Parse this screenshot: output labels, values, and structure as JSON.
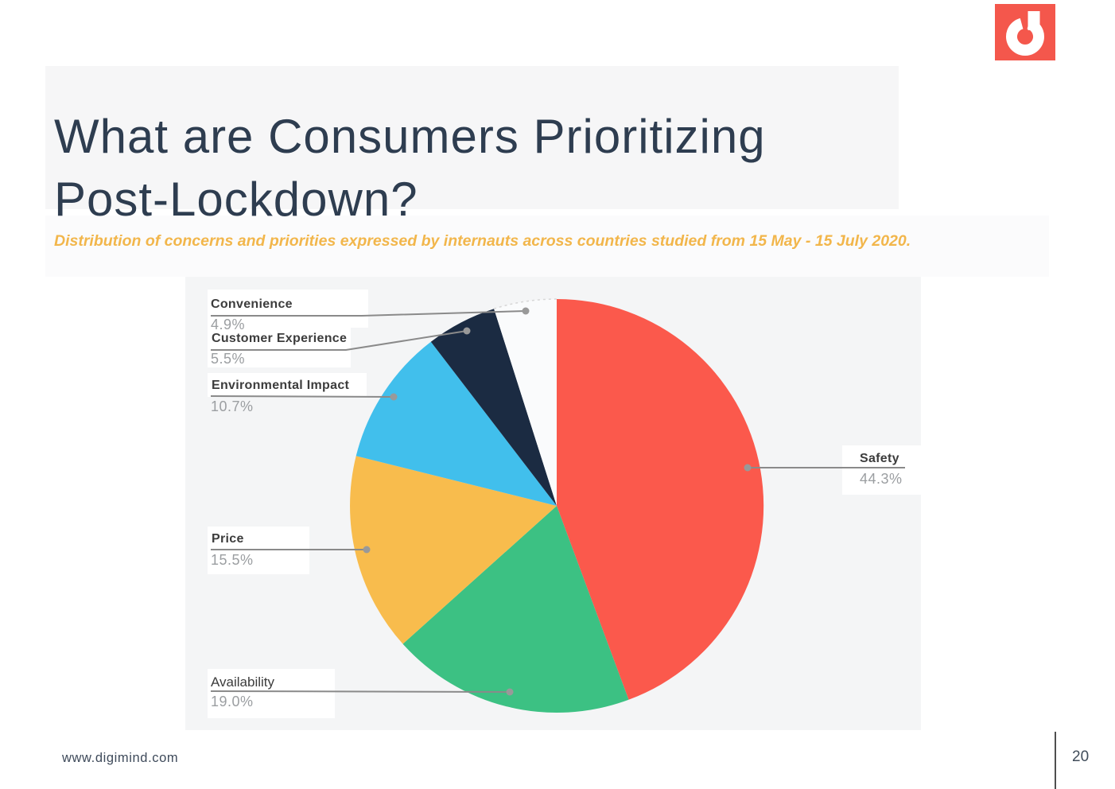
{
  "brand": {
    "logo_name": "digimind-logo",
    "logo_color": "#f4574c"
  },
  "header": {
    "title_lines": [
      "What are Consumers Prioritizing",
      "Post-Lockdown?"
    ],
    "subtitle": "Distribution of concerns and priorities expressed by internauts across countries studied from 15 May - 15 July 2020."
  },
  "chart_data": {
    "type": "pie",
    "title": "Distribution of concerns and priorities expressed by internauts across countries studied from 15 May - 15 July 2020",
    "start_angle": "12 o'clock",
    "direction": "clockwise",
    "legend_position": "callout-labels",
    "panel_background": "#f4f5f6",
    "slices": [
      {
        "name": "Safety",
        "value": 44.3,
        "pct_label": "44.3%",
        "color": "#fb594c",
        "callout_side": "right"
      },
      {
        "name": "Availability",
        "value": 19.0,
        "pct_label": "19.0%",
        "color": "#3cc183",
        "callout_side": "left"
      },
      {
        "name": "Price",
        "value": 15.5,
        "pct_label": "15.5%",
        "color": "#f8bc4d",
        "callout_side": "left"
      },
      {
        "name": "Environmental Impact",
        "value": 10.7,
        "pct_label": "10.7%",
        "color": "#41bfec",
        "callout_side": "left"
      },
      {
        "name": "Customer Experience",
        "value": 5.5,
        "pct_label": "5.5%",
        "color": "#1b2b42",
        "callout_side": "left"
      },
      {
        "name": "Convenience",
        "value": 4.9,
        "pct_label": "4.9%",
        "color": "#fafbfc",
        "callout_side": "left",
        "arc_outline": true
      }
    ]
  },
  "footer": {
    "website": "www.digimind.com",
    "page_number": "20"
  }
}
